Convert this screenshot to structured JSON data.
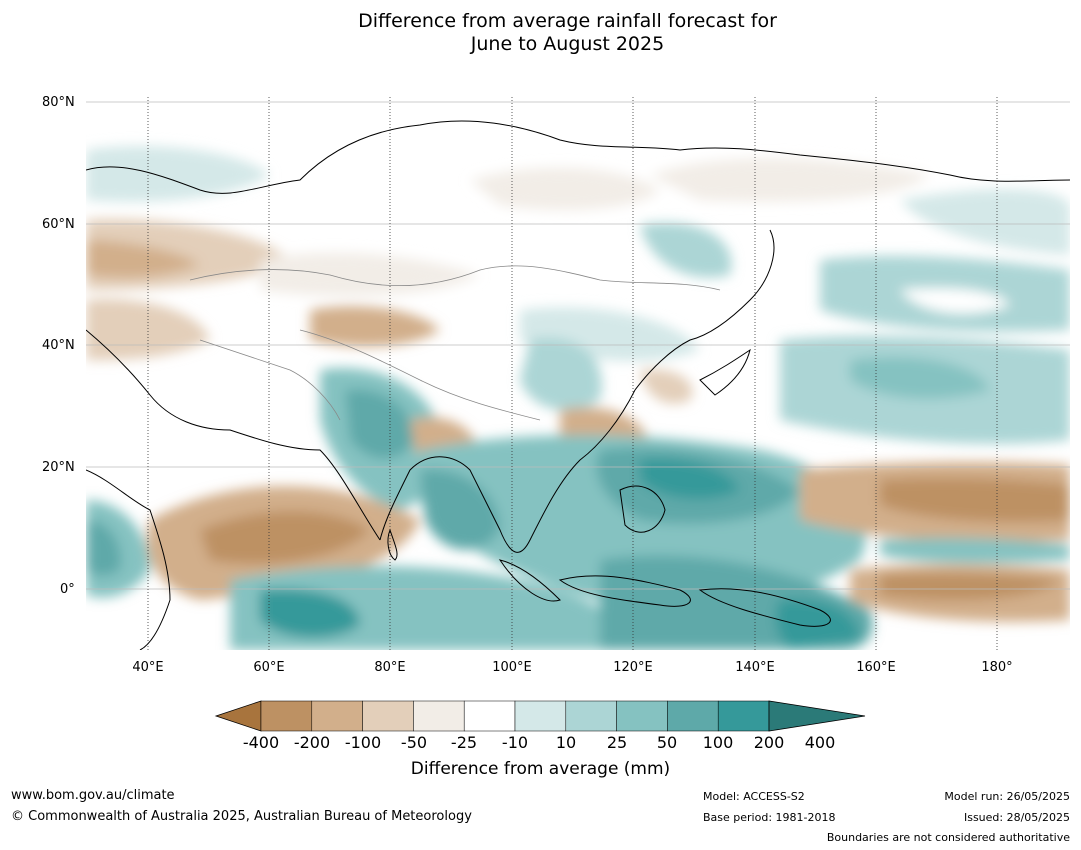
{
  "title_line1": "Difference from average rainfall forecast for",
  "title_line2": "June to August 2025",
  "map": {
    "lat_labels": [
      "80°N",
      "60°N",
      "40°N",
      "20°N",
      "0°"
    ],
    "lon_labels": [
      "40°E",
      "60°E",
      "80°E",
      "100°E",
      "120°E",
      "140°E",
      "160°E",
      "180°"
    ]
  },
  "colorbar": {
    "title": "Difference from average (mm)",
    "ticks": [
      "-400",
      "-200",
      "-100",
      "-50",
      "-25",
      "-10",
      "10",
      "25",
      "50",
      "100",
      "200",
      "400"
    ],
    "colors": [
      "#a8743d",
      "#bd9163",
      "#d2af8b",
      "#e3cfba",
      "#f2ede7",
      "#ffffff",
      "#d4e8e8",
      "#acd5d5",
      "#85c2c1",
      "#5ea9a9",
      "#35999a",
      "#2b7a78"
    ]
  },
  "footer": {
    "website": "www.bom.gov.au/climate",
    "copyright": "© Commonwealth of Australia 2025, Australian Bureau of Meteorology",
    "model": "Model: ACCESS-S2",
    "base_period": "Base period: 1981-2018",
    "model_run": "Model run: 26/05/2025",
    "issued": "Issued: 28/05/2025",
    "disclaimer": "Boundaries are not considered authoritative"
  }
}
